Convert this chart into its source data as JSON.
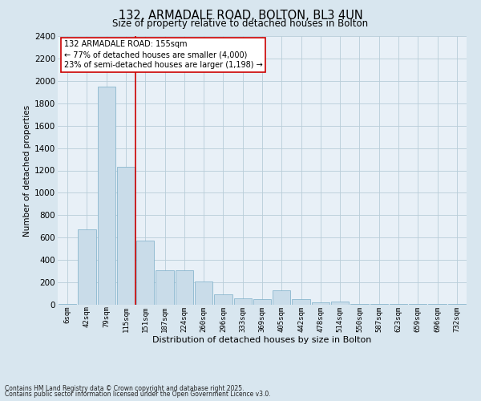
{
  "title1": "132, ARMADALE ROAD, BOLTON, BL3 4UN",
  "title2": "Size of property relative to detached houses in Bolton",
  "xlabel": "Distribution of detached houses by size in Bolton",
  "ylabel": "Number of detached properties",
  "annotation_title": "132 ARMADALE ROAD: 155sqm",
  "annotation_line1": "← 77% of detached houses are smaller (4,000)",
  "annotation_line2": "23% of semi-detached houses are larger (1,198) →",
  "footer1": "Contains HM Land Registry data © Crown copyright and database right 2025.",
  "footer2": "Contains public sector information licensed under the Open Government Licence v3.0.",
  "bin_labels": [
    "6sqm",
    "42sqm",
    "79sqm",
    "115sqm",
    "151sqm",
    "187sqm",
    "224sqm",
    "260sqm",
    "296sqm",
    "333sqm",
    "369sqm",
    "405sqm",
    "442sqm",
    "478sqm",
    "514sqm",
    "550sqm",
    "587sqm",
    "623sqm",
    "659sqm",
    "696sqm",
    "732sqm"
  ],
  "bar_heights": [
    10,
    670,
    1950,
    1230,
    570,
    310,
    310,
    205,
    90,
    60,
    50,
    130,
    50,
    20,
    30,
    10,
    5,
    5,
    5,
    5,
    5
  ],
  "bar_color": "#c9dce9",
  "bar_edgecolor": "#7aaec8",
  "vline_color": "#cc0000",
  "vline_bin_index": 4,
  "ylim": [
    0,
    2400
  ],
  "yticks": [
    0,
    200,
    400,
    600,
    800,
    1000,
    1200,
    1400,
    1600,
    1800,
    2000,
    2200,
    2400
  ],
  "grid_color": "#b8cdd8",
  "background_color": "#d8e6ef",
  "plot_bg_color": "#e8f0f7",
  "annotation_box_color": "#ffffff",
  "annotation_border_color": "#cc0000",
  "title1_fontsize": 10.5,
  "title2_fontsize": 8.5,
  "xlabel_fontsize": 8,
  "ylabel_fontsize": 7.5,
  "ytick_fontsize": 7.5,
  "xtick_fontsize": 6.5,
  "annotation_fontsize": 7,
  "footer_fontsize": 5.5
}
